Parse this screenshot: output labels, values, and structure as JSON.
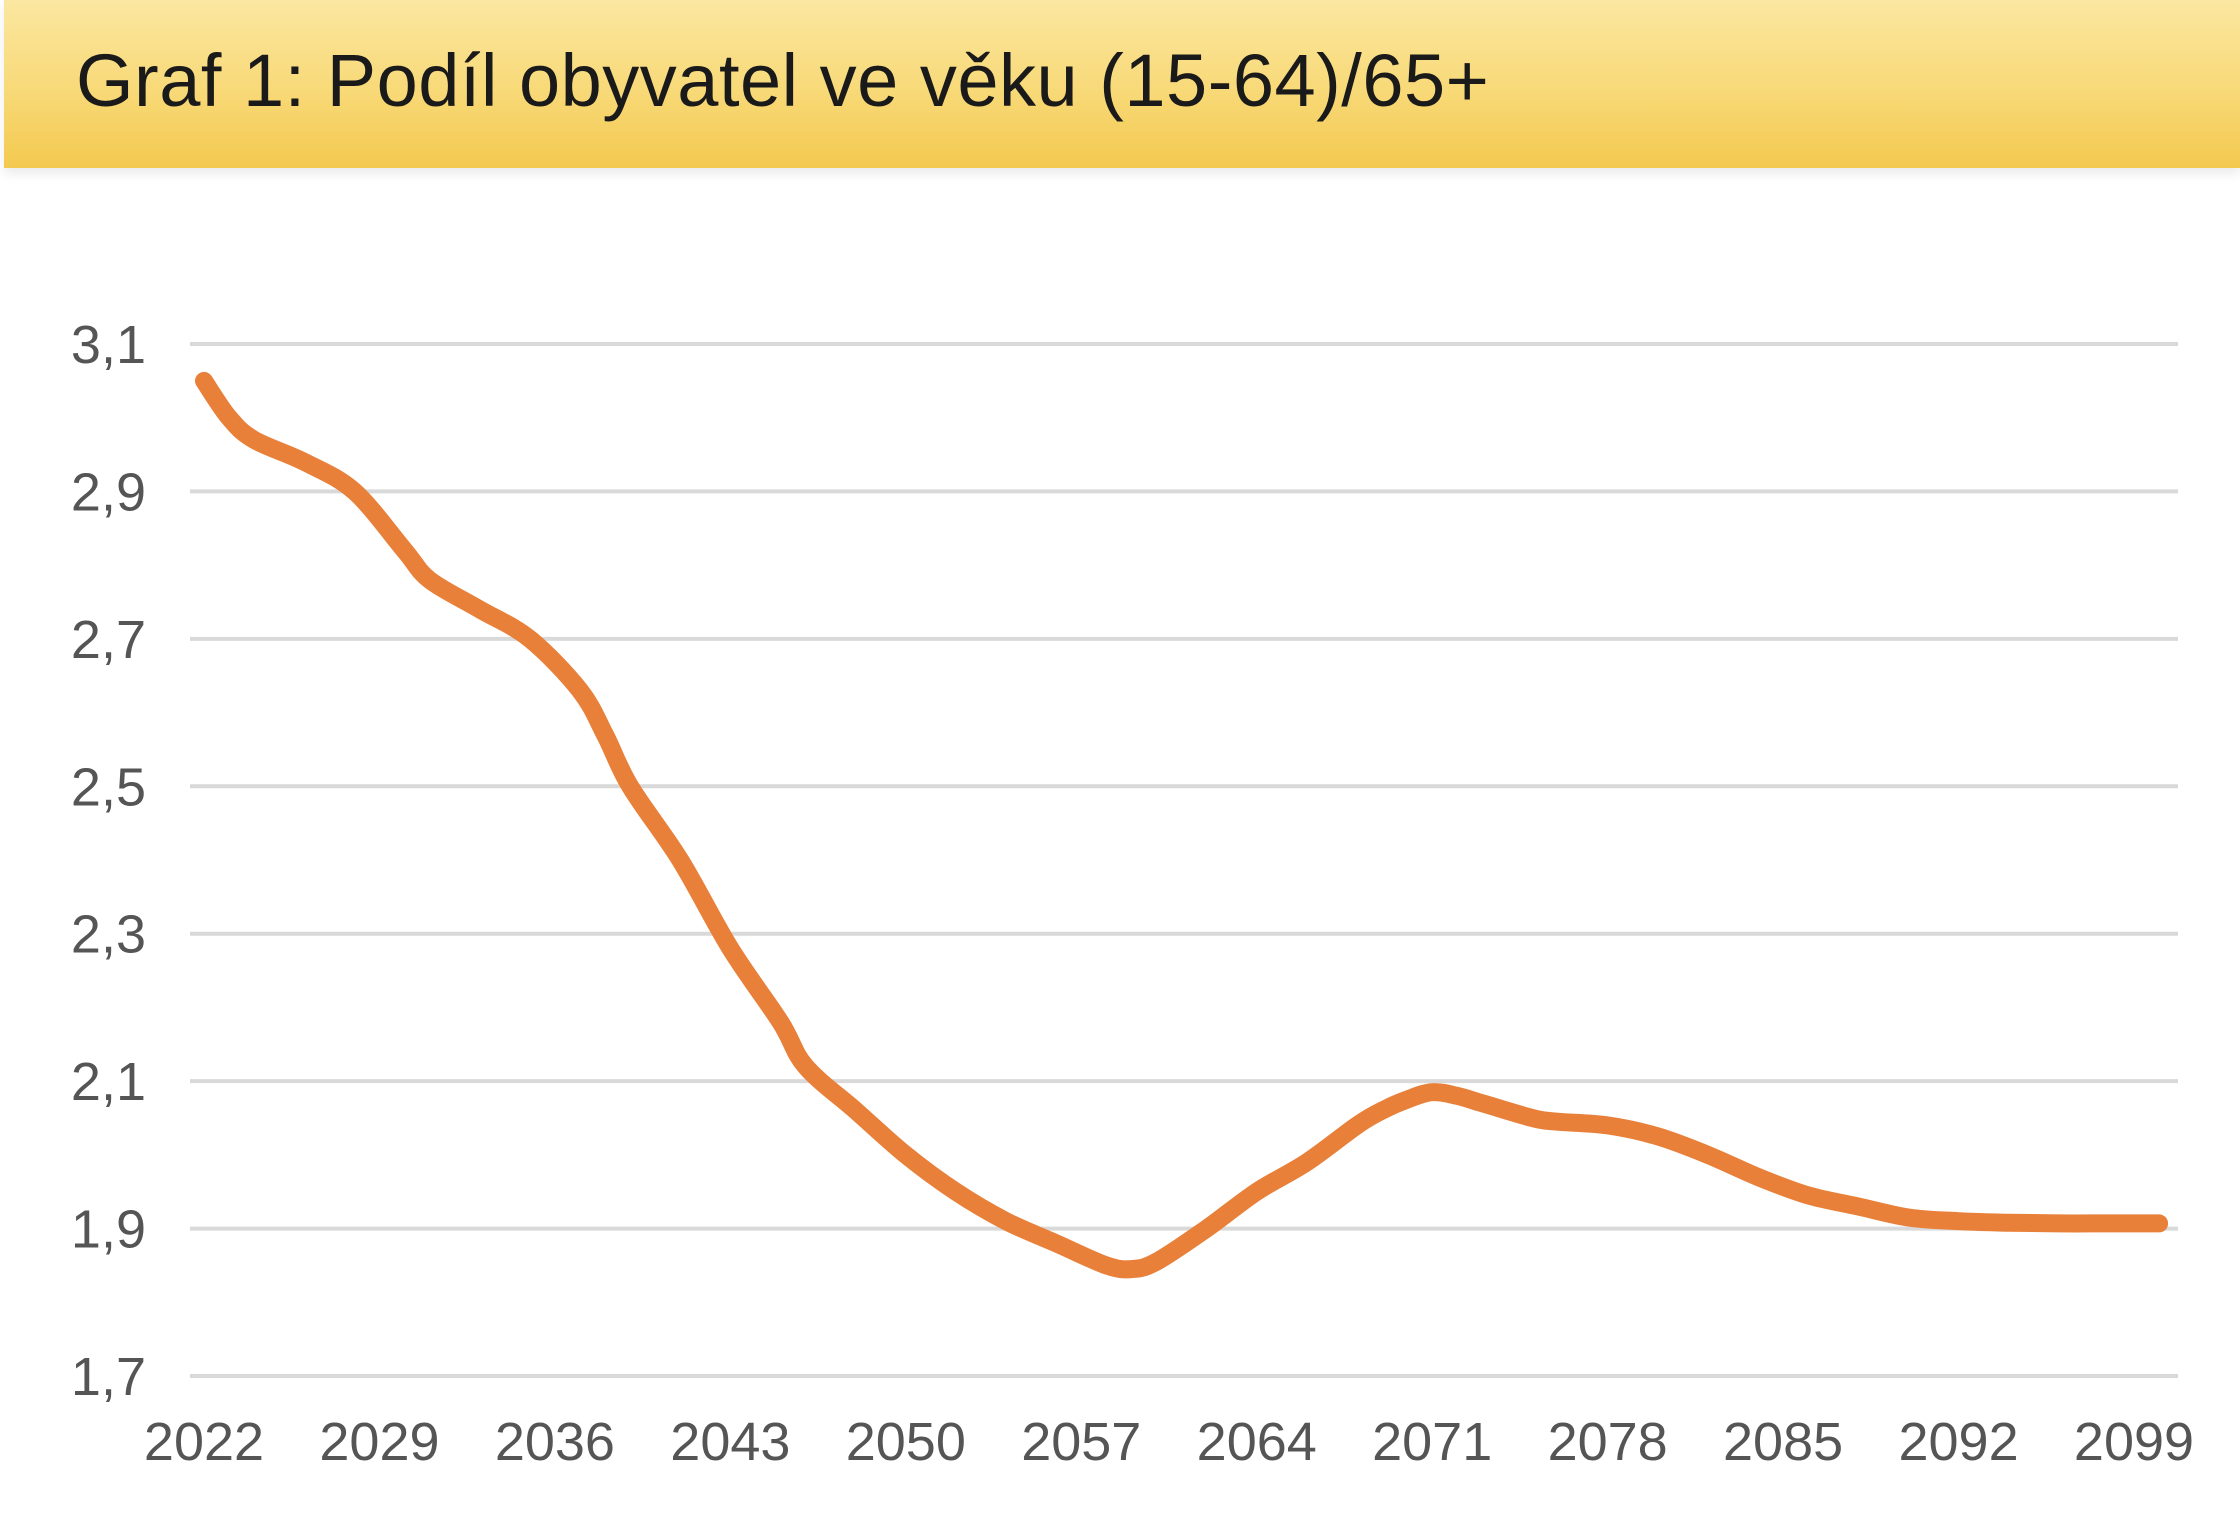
{
  "chart_data": {
    "type": "line",
    "title": "Graf 1: Podíl obyvatel ve věku (15-64)/65+",
    "xlabel": "",
    "ylabel": "",
    "x_tick_labels": [
      "2022",
      "2029",
      "2036",
      "2043",
      "2050",
      "2057",
      "2064",
      "2071",
      "2078",
      "2085",
      "2092",
      "2099"
    ],
    "y_tick_labels": [
      "3,1",
      "2,9",
      "2,7",
      "2,5",
      "2,3",
      "2,1",
      "1,9",
      "1,7"
    ],
    "ylim": [
      1.7,
      3.1
    ],
    "xlim": [
      2022,
      2100
    ],
    "grid": "horizontal",
    "legend": "none",
    "series": [
      {
        "color": "#e8803a",
        "x": [
          2022,
          2023,
          2024,
          2026,
          2028,
          2030,
          2031,
          2033,
          2035,
          2037,
          2038,
          2039,
          2041,
          2043,
          2045,
          2046,
          2048,
          2050,
          2052,
          2054,
          2056,
          2058,
          2059,
          2060,
          2062,
          2064,
          2066,
          2068,
          2069,
          2070,
          2071,
          2072,
          2073,
          2075,
          2076,
          2078,
          2080,
          2082,
          2084,
          2086,
          2088,
          2090,
          2092,
          2094,
          2096,
          2098,
          2100
        ],
        "values": [
          3.05,
          3.0,
          2.97,
          2.94,
          2.9,
          2.82,
          2.78,
          2.74,
          2.7,
          2.63,
          2.57,
          2.5,
          2.4,
          2.28,
          2.18,
          2.12,
          2.06,
          2.0,
          1.95,
          1.91,
          1.88,
          1.85,
          1.845,
          1.855,
          1.9,
          1.95,
          1.99,
          2.04,
          2.06,
          2.075,
          2.085,
          2.08,
          2.07,
          2.05,
          2.045,
          2.04,
          2.025,
          2.0,
          1.97,
          1.945,
          1.93,
          1.915,
          1.91,
          1.908,
          1.907,
          1.907,
          1.907
        ]
      }
    ]
  }
}
